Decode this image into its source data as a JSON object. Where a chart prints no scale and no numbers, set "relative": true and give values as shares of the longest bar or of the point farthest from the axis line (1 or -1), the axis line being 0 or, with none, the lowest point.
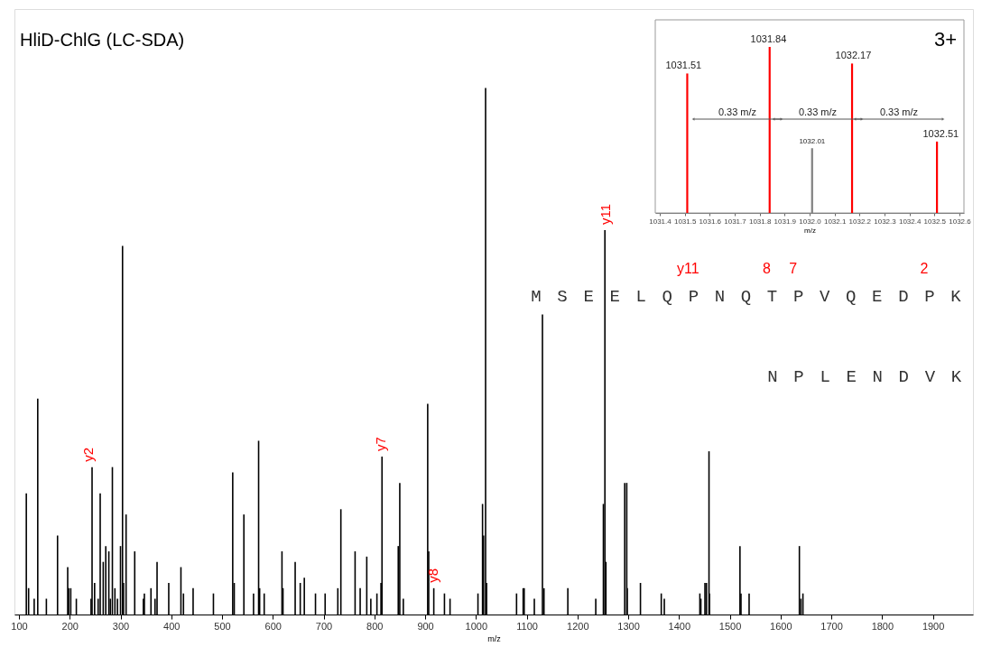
{
  "chart_data": [
    {
      "type": "bar",
      "title": "HliD-ChlG (LC-SDA)",
      "xlabel": "m/z",
      "relative": true,
      "color": "#000000",
      "x": [
        114.5,
        119,
        130,
        137,
        154,
        176,
        196,
        198,
        202,
        213,
        242,
        244,
        249,
        256,
        260,
        266,
        271,
        277,
        280,
        284,
        289,
        294,
        300,
        304,
        306,
        311,
        328,
        345,
        347,
        360,
        368,
        372,
        395,
        419,
        424,
        443,
        483,
        521,
        524,
        543,
        562,
        572,
        574,
        583,
        618,
        620,
        644,
        654,
        662,
        684,
        703,
        728,
        734,
        762,
        772,
        785,
        793,
        805,
        813,
        815,
        847,
        850,
        857,
        905,
        907,
        917,
        938,
        949,
        1004,
        1013,
        1015,
        1019,
        1021,
        1080,
        1093,
        1095,
        1115,
        1131,
        1134,
        1181,
        1236,
        1251,
        1254,
        1256,
        1293,
        1297,
        1298,
        1324,
        1365,
        1371,
        1441,
        1443,
        1451,
        1454,
        1459,
        1460,
        1520,
        1522,
        1538,
        1637,
        1640,
        1644
      ],
      "values": [
        0.23,
        0.05,
        0.03,
        0.41,
        0.03,
        0.15,
        0.09,
        0.05,
        0.05,
        0.03,
        0.03,
        0.28,
        0.06,
        0.03,
        0.23,
        0.1,
        0.13,
        0.12,
        0.03,
        0.28,
        0.05,
        0.03,
        0.13,
        0.7,
        0.06,
        0.19,
        0.12,
        0.03,
        0.04,
        0.05,
        0.03,
        0.1,
        0.06,
        0.09,
        0.04,
        0.05,
        0.04,
        0.27,
        0.06,
        0.19,
        0.04,
        0.33,
        0.05,
        0.04,
        0.12,
        0.05,
        0.1,
        0.06,
        0.07,
        0.04,
        0.04,
        0.05,
        0.2,
        0.12,
        0.05,
        0.11,
        0.03,
        0.04,
        0.06,
        0.3,
        0.13,
        0.25,
        0.03,
        0.4,
        0.12,
        0.05,
        0.04,
        0.03,
        0.04,
        0.21,
        0.15,
        1.0,
        0.06,
        0.04,
        0.05,
        0.05,
        0.03,
        0.57,
        0.05,
        0.05,
        0.03,
        0.21,
        0.73,
        0.1,
        0.25,
        0.25,
        0.05,
        0.06,
        0.04,
        0.03,
        0.04,
        0.03,
        0.06,
        0.06,
        0.31,
        0.04,
        0.13,
        0.04,
        0.04,
        0.13,
        0.03,
        0.04
      ],
      "xlim": [
        100,
        1970
      ],
      "xticks": [
        100,
        200,
        300,
        400,
        500,
        600,
        700,
        800,
        900,
        1000,
        1100,
        1200,
        1300,
        1400,
        1500,
        1600,
        1700,
        1800,
        1900
      ],
      "annotations": [
        {
          "text": "y2",
          "x": 244,
          "y": 0.28
        },
        {
          "text": "y7",
          "x": 815,
          "y": 0.3
        },
        {
          "text": "y8",
          "x": 917,
          "y": 0.05
        },
        {
          "text": "y11",
          "x": 1254,
          "y": 0.73
        },
        "M S E E L Q P N Q T P V Q E D P K",
        "N P L E N D V K",
        "y11",
        "8",
        "7",
        "2"
      ]
    },
    {
      "type": "bar",
      "relative": true,
      "xlabel": "m/z",
      "x": [
        1031.51,
        1031.84,
        1032.01,
        1032.17,
        1032.51
      ],
      "values": [
        0.84,
        1.0,
        0.39,
        0.9,
        0.43
      ],
      "colors": [
        "#ff0000",
        "#ff0000",
        "#808080",
        "#ff0000",
        "#ff0000"
      ],
      "xlim": [
        1031.4,
        1032.6
      ],
      "xticks": [
        1031.4,
        1031.5,
        1031.6,
        1031.7,
        1031.8,
        1031.9,
        {
          "value": 1032,
          "label": "1032.0"
        },
        1032.1,
        1032.2,
        1032.3,
        1032.4,
        1032.5,
        1032.6
      ],
      "annotations": [
        {
          "text": "1031.51",
          "x": 1031.51,
          "y": 0.84
        },
        {
          "text": "1031.84",
          "x": 1031.84,
          "y": 1.0
        },
        {
          "text": "1032.01",
          "x": 1032.01,
          "y": 0.39
        },
        {
          "text": "1032.17",
          "x": 1032.17,
          "y": 0.9
        },
        {
          "text": "1032.51",
          "x": 1032.51,
          "y": 0.43
        },
        "0.33 m/z",
        "0.33 m/z",
        "0.33 m/z",
        "3+"
      ]
    }
  ]
}
